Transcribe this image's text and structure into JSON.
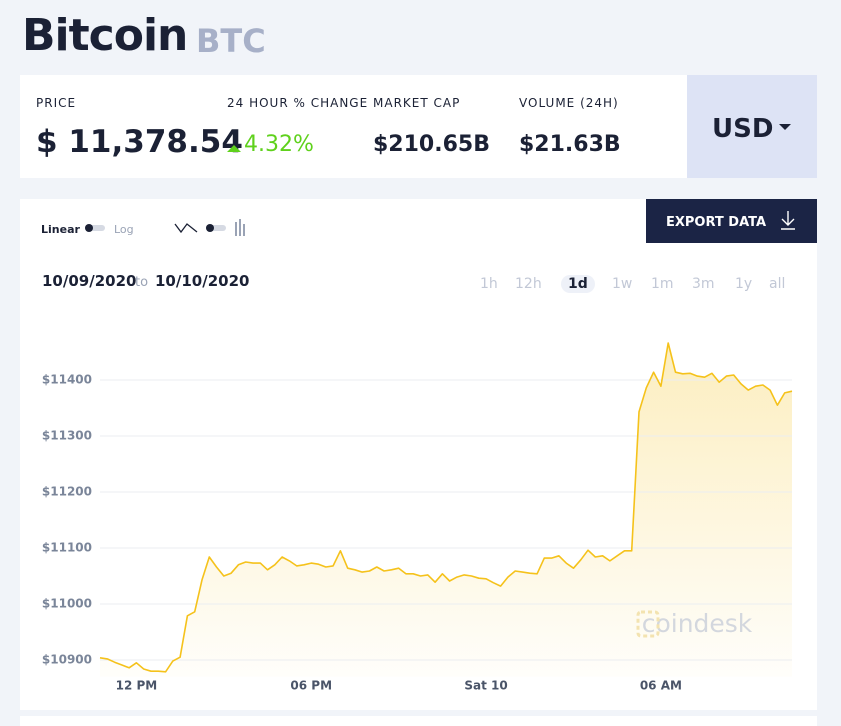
{
  "header": {
    "title": "Bitcoin",
    "symbol": "BTC"
  },
  "stats": [
    {
      "label": "PRICE",
      "value": "$ 11,378.54"
    },
    {
      "label": "24 HOUR % CHANGE",
      "value": "4.32%"
    },
    {
      "label": "MARKET CAP",
      "value": "$210.65B"
    },
    {
      "label": "VOLUME (24H)",
      "value": "$21.63B"
    }
  ],
  "currency": "USD",
  "controls": {
    "linear": "Linear",
    "log": "Log",
    "export": "EXPORT DATA",
    "date_from": "10/09/2020",
    "date_to_word": "to",
    "date_to": "10/10/2020",
    "ranges": [
      "1h",
      "12h",
      "1d",
      "1w",
      "1m",
      "3m",
      "1y",
      "all"
    ]
  },
  "watermark": "coindesk",
  "chart_data": {
    "type": "line",
    "color": "#f5c21b",
    "grid": true,
    "categories": [
      null,
      null,
      null,
      null,
      null,
      "12 PM",
      null,
      null,
      null,
      null,
      null,
      null,
      null,
      null,
      null,
      null,
      null,
      null,
      null,
      null,
      null,
      null,
      null,
      null,
      null,
      null,
      null,
      null,
      null,
      "06 PM",
      null,
      null,
      null,
      null,
      null,
      null,
      null,
      null,
      null,
      null,
      null,
      null,
      null,
      null,
      null,
      null,
      null,
      null,
      null,
      null,
      null,
      null,
      null,
      "Sat 10",
      null,
      null,
      null,
      null,
      null,
      null,
      null,
      null,
      null,
      null,
      null,
      null,
      null,
      null,
      null,
      null,
      null,
      null,
      null,
      null,
      null,
      null,
      null,
      "06 AM",
      null,
      null,
      null,
      null,
      null,
      null,
      null,
      null,
      null,
      null,
      null,
      null,
      null,
      null,
      null,
      null,
      null,
      null
    ],
    "values": [
      10904,
      10902,
      10896,
      10891,
      10886,
      10895,
      10884,
      10880,
      10880,
      10879,
      10898,
      10905,
      10979,
      10986,
      11043,
      11084,
      11066,
      11050,
      11055,
      11070,
      11075,
      11073,
      11073,
      11061,
      11070,
      11084,
      11077,
      11068,
      11070,
      11073,
      11071,
      11066,
      11068,
      11095,
      11064,
      11061,
      11057,
      11059,
      11066,
      11059,
      11061,
      11064,
      11054,
      11054,
      11050,
      11052,
      11039,
      11054,
      11041,
      11048,
      11052,
      11050,
      11046,
      11045,
      11038,
      11032,
      11048,
      11059,
      11057,
      11055,
      11054,
      11082,
      11082,
      11086,
      11073,
      11064,
      11079,
      11096,
      11084,
      11086,
      11077,
      11086,
      11095,
      11095,
      11343,
      11386,
      11414,
      11389,
      11466,
      11414,
      11411,
      11412,
      11407,
      11405,
      11412,
      11396,
      11407,
      11409,
      11393,
      11382,
      11389,
      11391,
      11382,
      11355,
      11377,
      11380
    ],
    "ylim": [
      10870,
      11510
    ],
    "yticks": [
      {
        "value": 10900,
        "label": "$10900"
      },
      {
        "value": 11000,
        "label": "$11000"
      },
      {
        "value": 11100,
        "label": "$11100"
      },
      {
        "value": 11200,
        "label": "$11200"
      },
      {
        "value": 11300,
        "label": "$11300"
      },
      {
        "value": 11400,
        "label": "$11400"
      }
    ]
  }
}
